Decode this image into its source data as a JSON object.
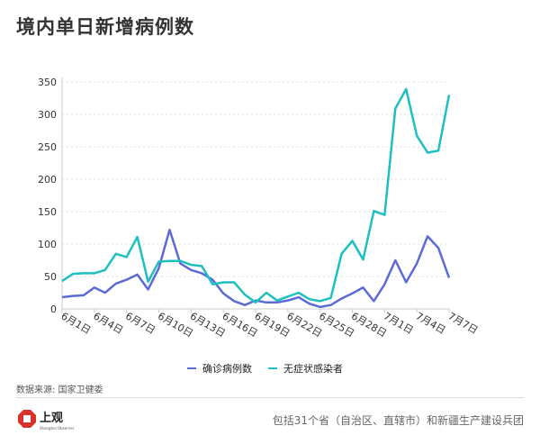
{
  "title": "境内单日新增病例数",
  "source": "数据来源: 国家卫健委",
  "footnote": "包括31个省（自治区、直辖市）和新疆生产建设兵团",
  "logo": {
    "text": "上观",
    "subtext": "Shanghai Observer",
    "color": "#d9312b"
  },
  "chart_data": {
    "type": "line",
    "title": "",
    "xlabel": "",
    "ylabel": "",
    "ylim": [
      0,
      350
    ],
    "yticks": [
      0,
      50,
      100,
      150,
      200,
      250,
      300,
      350
    ],
    "grid": "horizontal dotted",
    "legend_position": "bottom",
    "x": [
      "6月1日",
      "6月2日",
      "6月3日",
      "6月4日",
      "6月5日",
      "6月6日",
      "6月7日",
      "6月8日",
      "6月9日",
      "6月10日",
      "6月11日",
      "6月12日",
      "6月13日",
      "6月14日",
      "6月15日",
      "6月16日",
      "6月17日",
      "6月18日",
      "6月19日",
      "6月20日",
      "6月21日",
      "6月22日",
      "6月23日",
      "6月24日",
      "6月25日",
      "6月26日",
      "6月27日",
      "6月28日",
      "6月29日",
      "6月30日",
      "7月1日",
      "7月2日",
      "7月3日",
      "7月4日",
      "7月5日",
      "7月6日",
      "7月7日"
    ],
    "xtick_labels": [
      "6月1日",
      "6月4日",
      "6月7日",
      "6月10日",
      "6月13日",
      "6月16日",
      "6月19日",
      "6月22日",
      "6月25日",
      "6月28日",
      "7月1日",
      "7月4日",
      "7月7日"
    ],
    "series": [
      {
        "name": "确诊病例数",
        "color": "#5b6ad6",
        "values": [
          18,
          20,
          21,
          33,
          25,
          39,
          45,
          53,
          30,
          63,
          122,
          70,
          60,
          55,
          45,
          24,
          12,
          6,
          13,
          10,
          10,
          13,
          18,
          8,
          3,
          6,
          16,
          24,
          33,
          12,
          38,
          75,
          41,
          70,
          112,
          94,
          48
        ]
      },
      {
        "name": "无症状感染者",
        "color": "#1dbfbf",
        "values": [
          43,
          54,
          55,
          55,
          60,
          85,
          80,
          111,
          42,
          73,
          74,
          74,
          68,
          66,
          38,
          41,
          41,
          22,
          10,
          25,
          13,
          19,
          25,
          15,
          12,
          17,
          85,
          105,
          76,
          151,
          145,
          309,
          339,
          267,
          241,
          244,
          330
        ]
      }
    ]
  }
}
